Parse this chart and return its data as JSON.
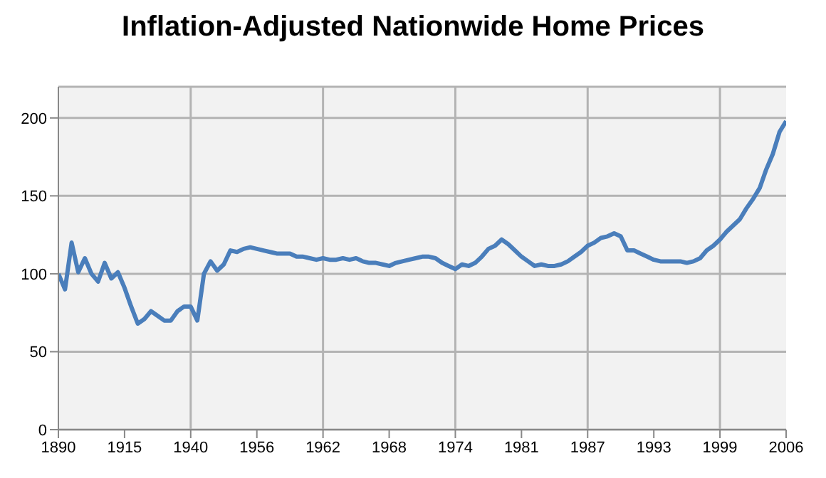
{
  "chart_data": {
    "type": "line",
    "title": "Inflation-Adjusted Nationwide Home Prices",
    "categories": [
      "1890",
      null,
      null,
      null,
      null,
      null,
      null,
      null,
      null,
      null,
      "1915",
      null,
      null,
      null,
      null,
      null,
      null,
      null,
      null,
      null,
      "1940",
      null,
      null,
      null,
      null,
      null,
      null,
      null,
      null,
      null,
      "1956",
      null,
      null,
      null,
      null,
      null,
      null,
      null,
      null,
      null,
      "1962",
      null,
      null,
      null,
      null,
      null,
      null,
      null,
      null,
      null,
      "1968",
      null,
      null,
      null,
      null,
      null,
      null,
      null,
      null,
      null,
      "1974",
      null,
      null,
      null,
      null,
      null,
      null,
      null,
      null,
      null,
      "1981",
      null,
      null,
      null,
      null,
      null,
      null,
      null,
      null,
      null,
      "1987",
      null,
      null,
      null,
      null,
      null,
      null,
      null,
      null,
      null,
      "1993",
      null,
      null,
      null,
      null,
      null,
      null,
      null,
      null,
      null,
      "1999",
      null,
      null,
      null,
      null,
      null,
      null,
      null,
      null,
      null,
      "2006"
    ],
    "series": [
      {
        "color": "#4a7ebb",
        "values": [
          100,
          90,
          120,
          101,
          110,
          100,
          95,
          107,
          97,
          101,
          91,
          79,
          68,
          71,
          76,
          73,
          70,
          70,
          76,
          79,
          79,
          70,
          100,
          108,
          102,
          106,
          115,
          114,
          116,
          117,
          116,
          115,
          114,
          113,
          113,
          113,
          111,
          111,
          110,
          109,
          110,
          109,
          109,
          110,
          109,
          110,
          108,
          107,
          107,
          106,
          105,
          107,
          108,
          109,
          110,
          111,
          111,
          110,
          107,
          105,
          103,
          106,
          105,
          107,
          111,
          116,
          118,
          122,
          119,
          115,
          111,
          108,
          105,
          106,
          105,
          105,
          106,
          108,
          111,
          114,
          118,
          120,
          123,
          124,
          126,
          124,
          115,
          115,
          113,
          111,
          109,
          108,
          108,
          108,
          108,
          107,
          108,
          110,
          115,
          118,
          122,
          127,
          131,
          135,
          142,
          148,
          155,
          167,
          177,
          191,
          198
        ]
      }
    ],
    "ylim": [
      0,
      220
    ],
    "yticks": [
      0,
      50,
      100,
      150,
      200
    ],
    "grid": true,
    "legend": false,
    "marker": "none",
    "line_style": "solid"
  }
}
